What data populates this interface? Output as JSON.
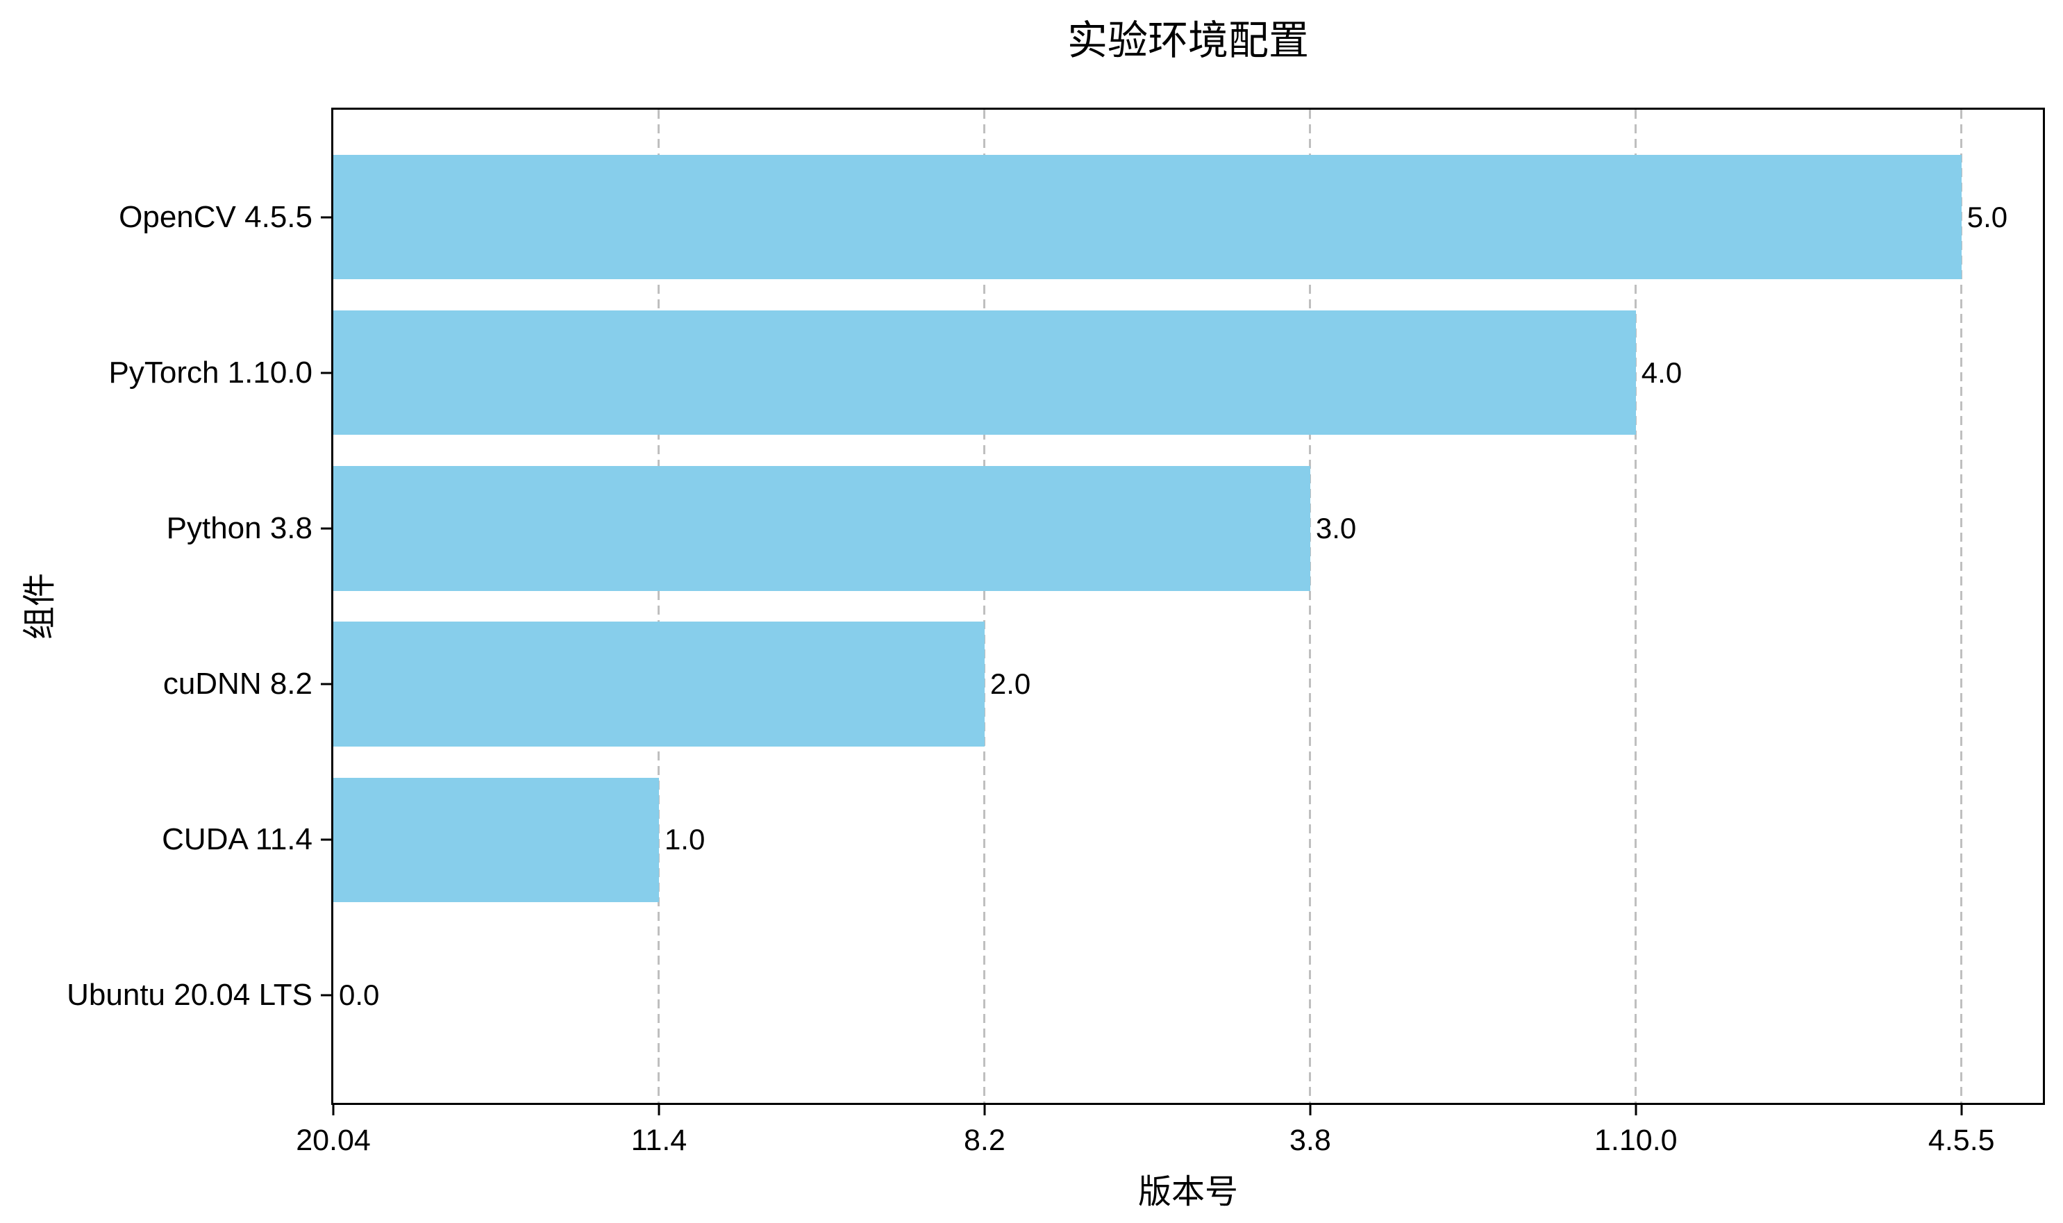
{
  "figure": {
    "background_color": "#ffffff"
  },
  "chart_data": {
    "type": "bar",
    "orientation": "horizontal",
    "title": "实验环境配置",
    "xlabel": "版本号",
    "ylabel": "组件",
    "categories": [
      "OpenCV 4.5.5",
      "PyTorch 1.10.0",
      "Python 3.8",
      "cuDNN 8.2",
      "CUDA 11.4",
      "Ubuntu 20.04 LTS"
    ],
    "values": [
      5.0,
      4.0,
      3.0,
      2.0,
      1.0,
      0.0
    ],
    "bar_value_labels": [
      "5.0",
      "4.0",
      "3.0",
      "2.0",
      "1.0",
      "0.0"
    ],
    "x_tick_values": [
      0,
      1,
      2,
      3,
      4,
      5
    ],
    "x_tick_labels": [
      "20.04",
      "11.4",
      "8.2",
      "3.8",
      "1.10.0",
      "4.5.5"
    ],
    "xlim": [
      0,
      5.25
    ],
    "ylim": [
      -0.69,
      5.69
    ],
    "bar_height_units": 0.8,
    "bar_color": "#87CEEB",
    "grid": {
      "axis": "x",
      "line_style": "dashed",
      "color": "#bfbfbf",
      "visible": true
    },
    "spine_color": "#000000",
    "text_color": "#000000",
    "legend": "none"
  }
}
